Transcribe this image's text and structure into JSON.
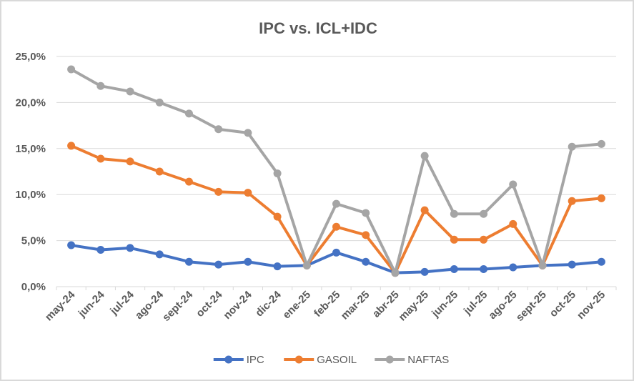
{
  "chart_data": {
    "type": "line",
    "title": "IPC vs. ICL+IDC",
    "xlabel": "",
    "ylabel": "",
    "ylim": [
      0,
      25
    ],
    "yticks": [
      0,
      5,
      10,
      15,
      20,
      25
    ],
    "ytick_labels": [
      "0,0%",
      "5,0%",
      "10,0%",
      "15,0%",
      "20,0%",
      "25,0%"
    ],
    "grid": true,
    "legend_position": "bottom",
    "categories": [
      "may-24",
      "jun-24",
      "jul-24",
      "ago-24",
      "sept-24",
      "oct-24",
      "nov-24",
      "dic-24",
      "ene-25",
      "feb-25",
      "mar-25",
      "abr-25",
      "may-25",
      "jun-25",
      "jul-25",
      "ago-25",
      "sept-25",
      "oct-25",
      "nov-25"
    ],
    "series": [
      {
        "name": "IPC",
        "color": "#4472c4",
        "values": [
          4.5,
          4.0,
          4.2,
          3.5,
          2.7,
          2.4,
          2.7,
          2.2,
          2.3,
          3.7,
          2.7,
          1.5,
          1.6,
          1.9,
          1.9,
          2.1,
          2.3,
          2.4,
          2.7
        ]
      },
      {
        "name": "GASOIL",
        "color": "#ed7d31",
        "values": [
          15.3,
          13.9,
          13.6,
          12.5,
          11.4,
          10.3,
          10.2,
          7.6,
          2.3,
          6.5,
          5.6,
          1.5,
          8.3,
          5.1,
          5.1,
          6.8,
          2.3,
          9.3,
          9.6
        ]
      },
      {
        "name": "NAFTAS",
        "color": "#a5a5a5",
        "values": [
          23.6,
          21.8,
          21.2,
          20.0,
          18.8,
          17.1,
          16.7,
          12.3,
          2.3,
          9.0,
          8.0,
          1.5,
          14.2,
          7.9,
          7.9,
          11.1,
          2.3,
          15.2,
          15.5
        ]
      }
    ]
  }
}
